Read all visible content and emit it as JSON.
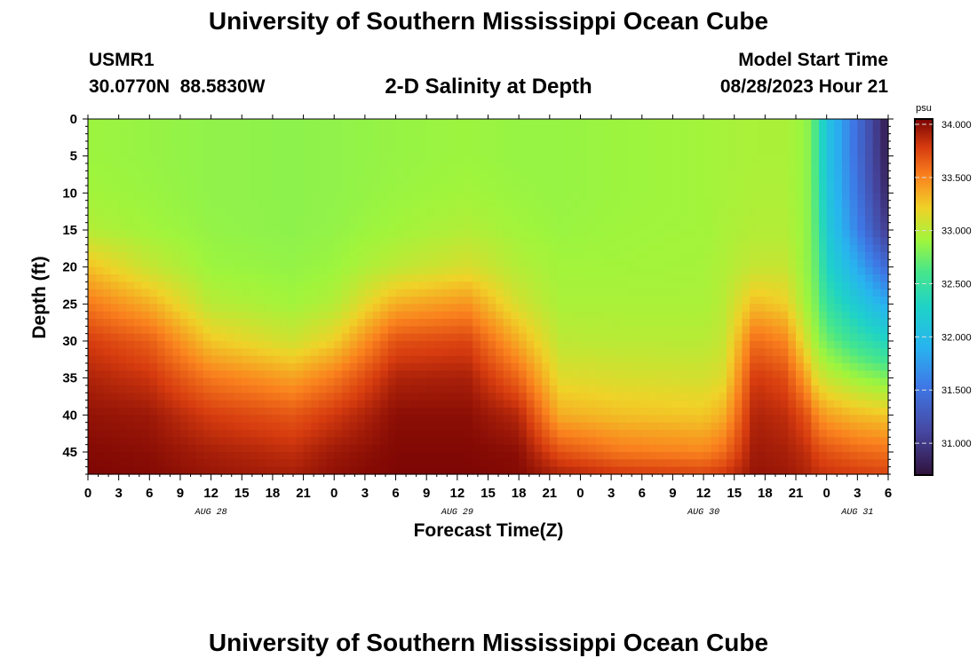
{
  "header": {
    "title": "University of Southern Mississippi Ocean Cube",
    "station_id": "USMR1",
    "coordinates": "30.0770N  88.5830W",
    "subtitle": "2-D Salinity at Depth",
    "model_start_label": "Model Start Time",
    "model_start_value": "08/28/2023 Hour 21"
  },
  "footer": {
    "title": "University of Southern Mississippi Ocean Cube"
  },
  "chart_data": {
    "type": "heatmap",
    "title": "2-D Salinity at Depth",
    "xlabel": "Forecast Time(Z)",
    "ylabel": "Depth (ft)",
    "x_tick_labels": [
      "0",
      "3",
      "6",
      "9",
      "12",
      "15",
      "18",
      "21",
      "0",
      "3",
      "6",
      "9",
      "12",
      "15",
      "18",
      "21",
      "0",
      "3",
      "6",
      "9",
      "12",
      "15",
      "18",
      "21",
      "0",
      "3",
      "6"
    ],
    "x_date_labels": [
      {
        "label": "AUG 28",
        "hour": 12
      },
      {
        "label": "AUG 29",
        "hour": 36
      },
      {
        "label": "AUG 30",
        "hour": 60
      },
      {
        "label": "AUG 31",
        "hour": 75
      }
    ],
    "x_range_hours": [
      0,
      78
    ],
    "y_ticks": [
      0,
      5,
      10,
      15,
      20,
      25,
      30,
      35,
      40,
      45
    ],
    "y_range_ft": [
      0,
      48
    ],
    "y_inverted": true,
    "colorbar": {
      "unit": "psu",
      "min": 30.7,
      "max": 34.05,
      "ticks": [
        "34.000",
        "33.500",
        "33.000",
        "32.500",
        "32.000",
        "31.500",
        "31.000"
      ]
    },
    "profile_depth_ft": [
      0,
      5,
      10,
      15,
      20,
      25,
      30,
      35,
      40,
      45,
      48
    ],
    "profiles": [
      {
        "hour": 0,
        "salinity": [
          32.9,
          32.9,
          32.92,
          32.98,
          33.28,
          33.55,
          33.78,
          33.9,
          33.98,
          34.02,
          34.04
        ]
      },
      {
        "hour": 6,
        "salinity": [
          32.88,
          32.88,
          32.89,
          32.92,
          33.05,
          33.35,
          33.65,
          33.82,
          33.95,
          34.0,
          34.02
        ]
      },
      {
        "hour": 12,
        "salinity": [
          32.86,
          32.86,
          32.86,
          32.87,
          32.9,
          33.0,
          33.25,
          33.55,
          33.78,
          33.92,
          33.96
        ]
      },
      {
        "hour": 20,
        "salinity": [
          32.85,
          32.85,
          32.85,
          32.85,
          32.87,
          32.92,
          33.08,
          33.4,
          33.68,
          33.85,
          33.92
        ]
      },
      {
        "hour": 24,
        "salinity": [
          32.86,
          32.86,
          32.86,
          32.87,
          32.9,
          32.98,
          33.22,
          33.55,
          33.8,
          33.95,
          33.99
        ]
      },
      {
        "hour": 30,
        "salinity": [
          32.88,
          32.88,
          32.89,
          32.92,
          33.02,
          33.35,
          33.7,
          33.9,
          34.0,
          34.03,
          34.04
        ]
      },
      {
        "hour": 37,
        "salinity": [
          32.9,
          32.9,
          32.92,
          32.98,
          33.12,
          33.45,
          33.75,
          33.92,
          34.0,
          34.03,
          34.04
        ]
      },
      {
        "hour": 42,
        "salinity": [
          32.88,
          32.88,
          32.89,
          32.92,
          32.98,
          33.1,
          33.35,
          33.62,
          33.88,
          34.0,
          34.02
        ]
      },
      {
        "hour": 46,
        "salinity": [
          32.88,
          32.88,
          32.88,
          32.89,
          32.92,
          32.95,
          33.02,
          33.15,
          33.35,
          33.7,
          33.9
        ]
      },
      {
        "hour": 52,
        "salinity": [
          32.9,
          32.9,
          32.9,
          32.91,
          32.92,
          32.95,
          33.0,
          33.12,
          33.28,
          33.55,
          33.8
        ]
      },
      {
        "hour": 60,
        "salinity": [
          32.92,
          32.92,
          32.92,
          32.92,
          32.93,
          32.95,
          33.0,
          33.1,
          33.25,
          33.5,
          33.75
        ]
      },
      {
        "hour": 62,
        "salinity": [
          32.94,
          32.94,
          32.94,
          32.95,
          32.97,
          33.0,
          33.05,
          33.15,
          33.35,
          33.6,
          33.8
        ]
      },
      {
        "hour": 65,
        "salinity": [
          32.95,
          32.95,
          32.96,
          32.98,
          33.05,
          33.3,
          33.6,
          33.8,
          33.9,
          33.95,
          33.97
        ]
      },
      {
        "hour": 68,
        "salinity": [
          32.95,
          32.95,
          32.96,
          32.98,
          33.05,
          33.22,
          33.5,
          33.72,
          33.85,
          33.92,
          33.95
        ]
      },
      {
        "hour": 70,
        "salinity": [
          32.88,
          32.88,
          32.88,
          32.88,
          32.88,
          32.92,
          33.1,
          33.4,
          33.7,
          33.85,
          33.9
        ]
      },
      {
        "hour": 71,
        "salinity": [
          32.6,
          32.6,
          32.62,
          32.65,
          32.7,
          32.78,
          32.9,
          33.15,
          33.5,
          33.75,
          33.85
        ]
      },
      {
        "hour": 72,
        "salinity": [
          32.1,
          32.1,
          32.12,
          32.18,
          32.3,
          32.5,
          32.75,
          33.05,
          33.4,
          33.7,
          33.82
        ]
      },
      {
        "hour": 75,
        "salinity": [
          31.45,
          31.45,
          31.5,
          31.6,
          31.85,
          32.15,
          32.5,
          32.9,
          33.3,
          33.62,
          33.78
        ]
      },
      {
        "hour": 78,
        "salinity": [
          30.75,
          30.78,
          30.85,
          31.0,
          31.4,
          31.85,
          32.3,
          32.8,
          33.25,
          33.58,
          33.75
        ]
      }
    ]
  }
}
